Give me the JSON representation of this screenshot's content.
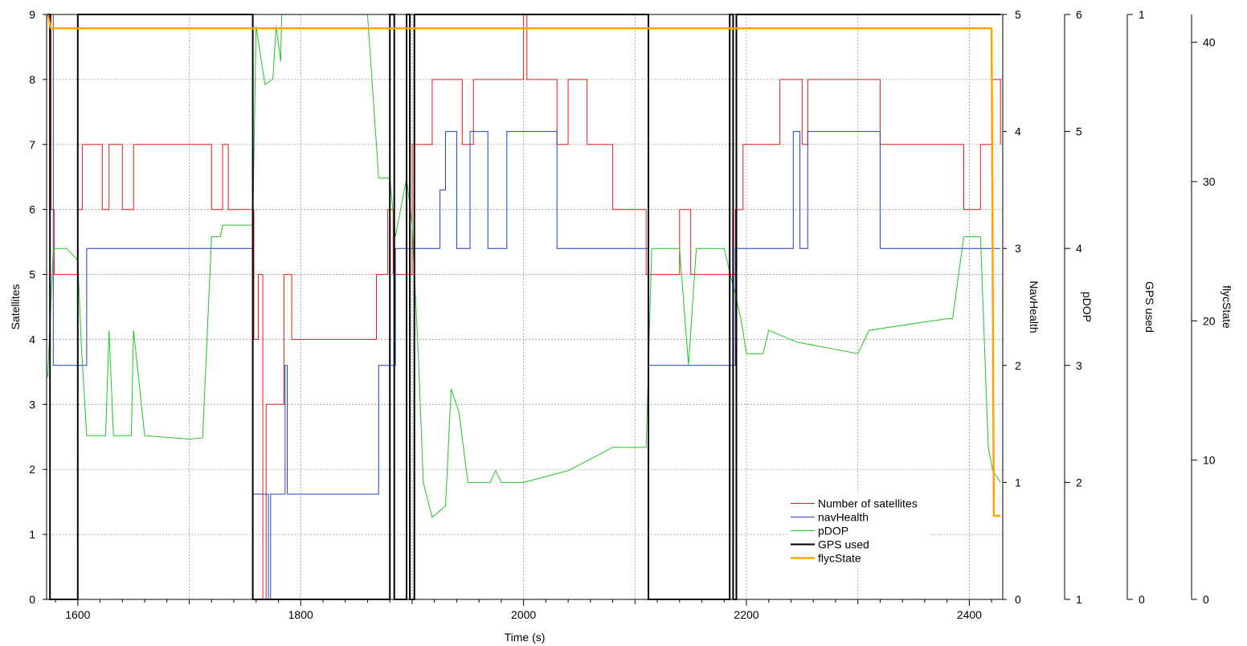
{
  "chart_data": {
    "type": "line",
    "xlabel": "Time (s)",
    "x_ticks": [
      1600,
      1800,
      2000,
      2200,
      2400
    ],
    "xlim": [
      1572,
      2430
    ],
    "grid": true,
    "legend_position": "bottom-right",
    "axes": [
      {
        "id": "sat",
        "label": "Satellites",
        "side": "left",
        "ylim": [
          0,
          9
        ],
        "ticks": [
          0,
          1,
          2,
          3,
          4,
          5,
          6,
          7,
          8,
          9
        ]
      },
      {
        "id": "nav",
        "label": "NavHealth",
        "side": "right",
        "ylim": [
          0,
          5
        ],
        "ticks": [
          0,
          1,
          2,
          3,
          4,
          5
        ]
      },
      {
        "id": "pdop",
        "label": "pDOP",
        "side": "right",
        "ylim": [
          1,
          6
        ],
        "ticks": [
          1,
          2,
          3,
          4,
          5,
          6
        ]
      },
      {
        "id": "gps",
        "label": "GPS used",
        "side": "right",
        "ylim": [
          0,
          1
        ],
        "ticks": [
          0,
          1
        ]
      },
      {
        "id": "flyc",
        "label": "flycState",
        "side": "right",
        "ylim": [
          0,
          42
        ],
        "ticks": [
          0,
          10,
          20,
          30,
          40
        ]
      }
    ],
    "series": [
      {
        "name": "Number of satellites",
        "axis": "sat",
        "color": "#e41a1a",
        "width": 1,
        "step": true,
        "points": [
          [
            1573,
            9
          ],
          [
            1576,
            6
          ],
          [
            1579,
            5
          ],
          [
            1600,
            6
          ],
          [
            1604,
            7
          ],
          [
            1622,
            6
          ],
          [
            1628,
            7
          ],
          [
            1640,
            6
          ],
          [
            1650,
            7
          ],
          [
            1720,
            6
          ],
          [
            1730,
            7
          ],
          [
            1735,
            6
          ],
          [
            1758,
            4
          ],
          [
            1762,
            5
          ],
          [
            1766,
            0
          ],
          [
            1769,
            3
          ],
          [
            1785,
            5
          ],
          [
            1792,
            4
          ],
          [
            1868,
            5
          ],
          [
            1878,
            6
          ],
          [
            1883,
            5
          ],
          [
            1900,
            7
          ],
          [
            1910,
            7
          ],
          [
            1918,
            8
          ],
          [
            1945,
            7
          ],
          [
            1955,
            8
          ],
          [
            2000,
            9
          ],
          [
            2003,
            8
          ],
          [
            2030,
            7
          ],
          [
            2040,
            8
          ],
          [
            2057,
            7
          ],
          [
            2080,
            6
          ],
          [
            2110,
            5
          ],
          [
            2140,
            6
          ],
          [
            2150,
            5
          ],
          [
            2190,
            6
          ],
          [
            2197,
            7
          ],
          [
            2230,
            8
          ],
          [
            2250,
            7
          ],
          [
            2255,
            8
          ],
          [
            2320,
            7
          ],
          [
            2395,
            6
          ],
          [
            2410,
            7
          ],
          [
            2420,
            8
          ],
          [
            2428,
            7
          ]
        ]
      },
      {
        "name": "navHealth",
        "axis": "nav",
        "color": "#1f3fbf",
        "width": 1,
        "step": true,
        "points": [
          [
            1573,
            5
          ],
          [
            1578,
            2
          ],
          [
            1608,
            3
          ],
          [
            1757,
            0.9
          ],
          [
            1771,
            0
          ],
          [
            1773,
            0.9
          ],
          [
            1786,
            2
          ],
          [
            1788,
            0.9
          ],
          [
            1870,
            2
          ],
          [
            1885,
            3
          ],
          [
            1925,
            3.5
          ],
          [
            1930,
            4
          ],
          [
            1940,
            3
          ],
          [
            1952,
            4
          ],
          [
            1968,
            3
          ],
          [
            1985,
            4
          ],
          [
            2030,
            3
          ],
          [
            2112,
            2
          ],
          [
            2190,
            3
          ],
          [
            2242,
            4
          ],
          [
            2248,
            3
          ],
          [
            2255,
            4
          ],
          [
            2320,
            3
          ],
          [
            2428,
            3
          ]
        ]
      },
      {
        "name": "pDOP",
        "axis": "pdop",
        "color": "#22c322",
        "width": 1,
        "step": false,
        "points": [
          [
            1573,
            2.9
          ],
          [
            1578,
            4
          ],
          [
            1590,
            4
          ],
          [
            1600,
            3.9
          ],
          [
            1603,
            3.2
          ],
          [
            1608,
            2.4
          ],
          [
            1625,
            2.4
          ],
          [
            1628,
            3.3
          ],
          [
            1632,
            2.4
          ],
          [
            1648,
            2.4
          ],
          [
            1650,
            3.3
          ],
          [
            1660,
            2.4
          ],
          [
            1700,
            2.37
          ],
          [
            1712,
            2.38
          ],
          [
            1720,
            4.1
          ],
          [
            1728,
            4.1
          ],
          [
            1730,
            4.2
          ],
          [
            1757,
            4.2
          ],
          [
            1760,
            5.9
          ],
          [
            1768,
            5.4
          ],
          [
            1775,
            5.45
          ],
          [
            1778,
            5.9
          ],
          [
            1782,
            5.6
          ],
          [
            1783,
            6
          ],
          [
            1800,
            6
          ],
          [
            1860,
            6
          ],
          [
            1870,
            4.6
          ],
          [
            1880,
            4.6
          ],
          [
            1885,
            4.1
          ],
          [
            1895,
            4.6
          ],
          [
            1900,
            4.2
          ],
          [
            1906,
            3
          ],
          [
            1910,
            2
          ],
          [
            1918,
            1.7
          ],
          [
            1930,
            1.8
          ],
          [
            1935,
            2.8
          ],
          [
            1942,
            2.6
          ],
          [
            1950,
            2
          ],
          [
            1970,
            2
          ],
          [
            1975,
            2.1
          ],
          [
            1980,
            2
          ],
          [
            2000,
            2
          ],
          [
            2020,
            2.05
          ],
          [
            2040,
            2.1
          ],
          [
            2060,
            2.2
          ],
          [
            2080,
            2.3
          ],
          [
            2110,
            2.3
          ],
          [
            2115,
            4
          ],
          [
            2140,
            4
          ],
          [
            2148,
            3
          ],
          [
            2155,
            4
          ],
          [
            2180,
            4
          ],
          [
            2195,
            3.4
          ],
          [
            2200,
            3.1
          ],
          [
            2215,
            3.1
          ],
          [
            2220,
            3.3
          ],
          [
            2245,
            3.2
          ],
          [
            2300,
            3.1
          ],
          [
            2310,
            3.3
          ],
          [
            2380,
            3.4
          ],
          [
            2385,
            3.4
          ],
          [
            2395,
            4.1
          ],
          [
            2410,
            4.1
          ],
          [
            2417,
            2.3
          ],
          [
            2421,
            2.1
          ],
          [
            2428,
            2
          ]
        ]
      },
      {
        "name": "GPS used",
        "axis": "gps",
        "color": "#000000",
        "width": 2,
        "step": true,
        "points": [
          [
            1573,
            1
          ],
          [
            1575,
            0
          ],
          [
            1600,
            1
          ],
          [
            1757,
            0
          ],
          [
            1880,
            1
          ],
          [
            1884,
            0
          ],
          [
            1895,
            1
          ],
          [
            1898,
            0
          ],
          [
            1902,
            1
          ],
          [
            2112,
            0
          ],
          [
            2185,
            1
          ],
          [
            2188,
            0
          ],
          [
            2191,
            1
          ],
          [
            2428,
            1
          ]
        ]
      },
      {
        "name": "flycState",
        "axis": "flyc",
        "color": "#ffa500",
        "width": 2.5,
        "step": false,
        "points": [
          [
            1573,
            42
          ],
          [
            1576,
            41
          ],
          [
            2420,
            41
          ],
          [
            2422,
            6
          ],
          [
            2428,
            6
          ]
        ]
      }
    ]
  }
}
